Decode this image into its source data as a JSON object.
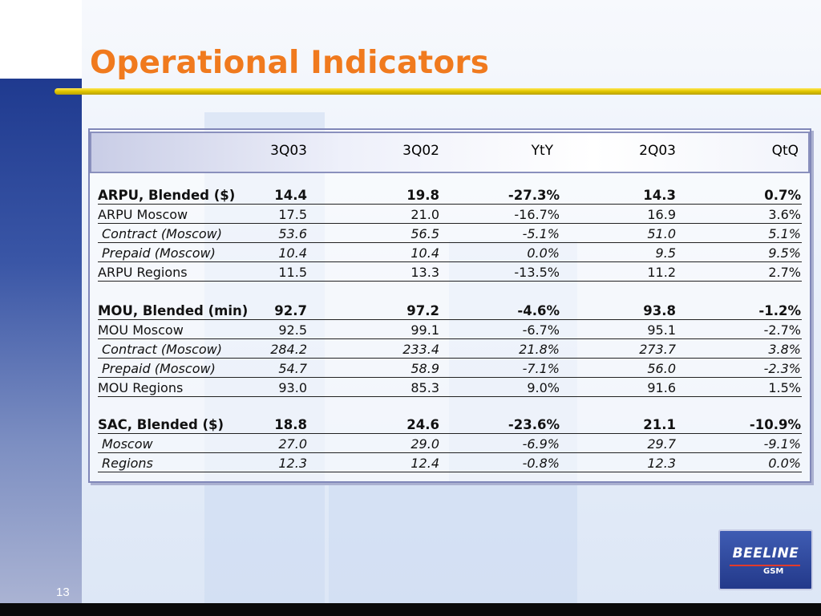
{
  "slide": {
    "title": "Operational Indicators",
    "page_number": "13"
  },
  "table": {
    "headers": [
      "3Q03",
      "3Q02",
      "YtY",
      "2Q03",
      "QtQ"
    ],
    "rows": [
      {
        "label": "ARPU, Blended ($)",
        "values": [
          "14.4",
          "19.8",
          "-27.3%",
          "14.3",
          "0.7%"
        ],
        "style": "bold"
      },
      {
        "label": "ARPU Moscow",
        "values": [
          "17.5",
          "21.0",
          "-16.7%",
          "16.9",
          "3.6%"
        ],
        "style": "normal"
      },
      {
        "label": "Contract (Moscow)",
        "values": [
          "53.6",
          "56.5",
          "-5.1%",
          "51.0",
          "5.1%"
        ],
        "style": "italic"
      },
      {
        "label": "Prepaid (Moscow)",
        "values": [
          "10.4",
          "10.4",
          "0.0%",
          "9.5",
          "9.5%"
        ],
        "style": "italic"
      },
      {
        "label": "ARPU Regions",
        "values": [
          "11.5",
          "13.3",
          "-13.5%",
          "11.2",
          "2.7%"
        ],
        "style": "normal"
      },
      {
        "label": "MOU, Blended (min)",
        "values": [
          "92.7",
          "97.2",
          "-4.6%",
          "93.8",
          "-1.2%"
        ],
        "style": "bold"
      },
      {
        "label": "MOU Moscow",
        "values": [
          "92.5",
          "99.1",
          "-6.7%",
          "95.1",
          "-2.7%"
        ],
        "style": "normal"
      },
      {
        "label": "Contract (Moscow)",
        "values": [
          "284.2",
          "233.4",
          "21.8%",
          "273.7",
          "3.8%"
        ],
        "style": "italic"
      },
      {
        "label": "Prepaid (Moscow)",
        "values": [
          "54.7",
          "58.9",
          "-7.1%",
          "56.0",
          "-2.3%"
        ],
        "style": "italic"
      },
      {
        "label": "MOU Regions",
        "values": [
          "93.0",
          "85.3",
          "9.0%",
          "91.6",
          "1.5%"
        ],
        "style": "normal"
      },
      {
        "label": "SAC, Blended ($)",
        "values": [
          "18.8",
          "24.6",
          "-23.6%",
          "21.1",
          "-10.9%"
        ],
        "style": "bold"
      },
      {
        "label": "Moscow",
        "values": [
          "27.0",
          "29.0",
          "-6.9%",
          "29.7",
          "-9.1%"
        ],
        "style": "italic"
      },
      {
        "label": "Regions",
        "values": [
          "12.3",
          "12.4",
          "-0.8%",
          "12.3",
          "0.0%"
        ],
        "style": "italic"
      }
    ]
  },
  "logo": {
    "text": "BEELINE",
    "subtext": "GSM"
  }
}
